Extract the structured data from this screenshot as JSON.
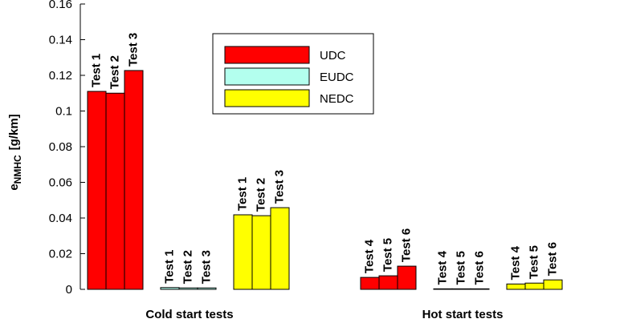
{
  "chart_data": {
    "type": "grouped-bar",
    "ylabel": {
      "main": "e",
      "sub": "NMHC",
      "unit": "[g/km]"
    },
    "groups": [
      {
        "name": "Cold start tests",
        "tests": [
          "Test 1",
          "Test 2",
          "Test 3"
        ]
      },
      {
        "name": "Hot start tests",
        "tests": [
          "Test 4",
          "Test 5",
          "Test 6"
        ]
      }
    ],
    "series": [
      {
        "name": "UDC",
        "color": "#ff0000",
        "values": [
          [
            0.111,
            0.11,
            0.1227
          ],
          [
            0.0067,
            0.0076,
            0.013
          ]
        ]
      },
      {
        "name": "EUDC",
        "color": "#b3ffee",
        "values": [
          [
            0.001,
            0.0008,
            0.0008
          ],
          [
            0.0003,
            0.0003,
            0.0003
          ]
        ]
      },
      {
        "name": "NEDC",
        "color": "#ffff00",
        "values": [
          [
            0.0418,
            0.0413,
            0.0458
          ],
          [
            0.003,
            0.0035,
            0.0053
          ]
        ]
      }
    ],
    "ylim": [
      0,
      0.16
    ],
    "yticks": [
      0,
      0.02,
      0.04,
      0.06,
      0.08,
      0.1,
      0.12,
      0.14,
      0.16
    ],
    "legend": "top-center"
  }
}
